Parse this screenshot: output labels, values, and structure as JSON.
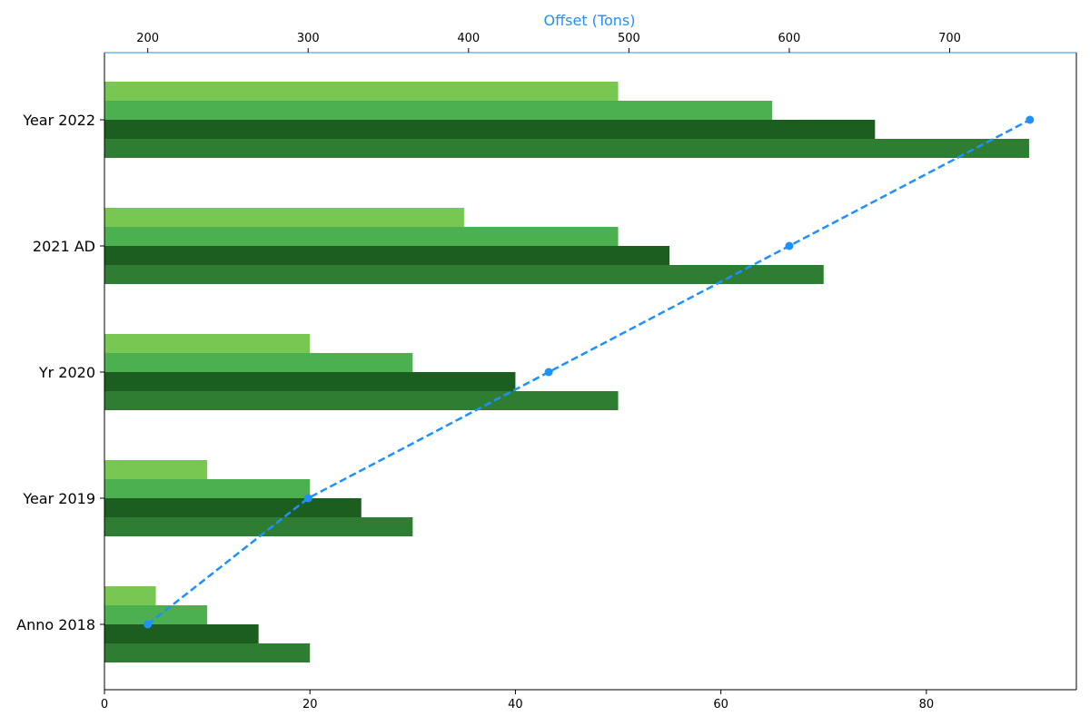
{
  "chart_data": {
    "type": "bar",
    "orientation": "horizontal",
    "categories": [
      "Anno 2018",
      "Year 2019",
      "Yr 2020",
      "2021 AD",
      "Year 2022"
    ],
    "series": [
      {
        "values": [
          5,
          10,
          20,
          35,
          50
        ],
        "color": "#77c752"
      },
      {
        "values": [
          10,
          20,
          30,
          50,
          65
        ],
        "color": "#4caf50"
      },
      {
        "values": [
          15,
          25,
          40,
          55,
          75
        ],
        "color": "#1b5e20"
      },
      {
        "values": [
          20,
          30,
          50,
          70,
          90
        ],
        "color": "#2e7d32"
      }
    ],
    "xlim": [
      0,
      94.6
    ],
    "x_ticks": [
      0,
      20,
      40,
      60,
      80
    ],
    "grid": false,
    "secondary": {
      "type": "line",
      "axis_position": "top",
      "xlabel": "Offset (Tons)",
      "xlabel_color": "#1e90ff",
      "color": "#1e90ff",
      "line_style": "dashed",
      "xlim": [
        173,
        779
      ],
      "x_ticks": [
        200,
        300,
        400,
        500,
        600,
        700
      ],
      "values": [
        200,
        300,
        450,
        600,
        750
      ]
    }
  }
}
